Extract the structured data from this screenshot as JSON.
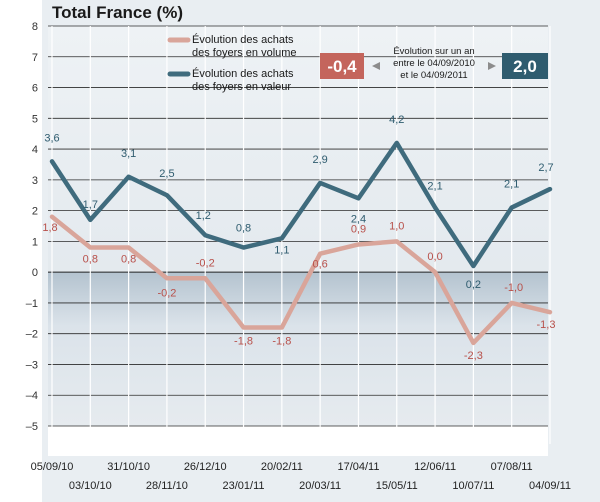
{
  "chart_data": {
    "type": "line",
    "title": "Total France (%)",
    "x": [
      "05/09/10",
      "03/10/10",
      "31/10/10",
      "28/11/10",
      "26/12/10",
      "23/01/11",
      "20/02/11",
      "20/03/11",
      "17/04/11",
      "15/05/11",
      "12/06/11",
      "10/07/11",
      "07/08/11",
      "04/09/11"
    ],
    "ylim": [
      -5,
      8
    ],
    "yticks": [
      -5,
      -4,
      -3,
      -2,
      -1,
      0,
      1,
      2,
      3,
      4,
      5,
      6,
      7,
      8
    ],
    "grid": true,
    "legend_position": "top-right",
    "series": [
      {
        "name": "Évolution des achats des foyers en volume",
        "name_lines": [
          "Évolution des achats",
          "des foyers en volume"
        ],
        "color": "#d9a59a",
        "values": [
          1.8,
          0.8,
          0.8,
          -0.2,
          -0.2,
          -1.8,
          -1.8,
          0.6,
          0.9,
          1.0,
          0.0,
          -2.3,
          -1.0,
          -1.3
        ],
        "labels": [
          "1,8",
          "0,8",
          "0,8",
          "-0,2",
          "-0,2",
          "-1,8",
          "-1,8",
          "0,6",
          "0,9",
          "1,0",
          "0,0",
          "-2,3",
          "-1,0",
          "-1,3"
        ]
      },
      {
        "name": "Évolution des achats des foyers en valeur",
        "name_lines": [
          "Évolution des achats",
          "des foyers en valeur"
        ],
        "color": "#3f6b7d",
        "values": [
          3.6,
          1.7,
          3.1,
          2.5,
          1.2,
          0.8,
          1.1,
          2.9,
          2.4,
          4.2,
          2.1,
          0.2,
          2.1,
          2.7
        ],
        "labels": [
          "3,6",
          "1,7",
          "3,1",
          "2,5",
          "1,2",
          "0,8",
          "1,1",
          "2,9",
          "2,4",
          "4,2",
          "2,1",
          "0,2",
          "2,1",
          "2,7"
        ]
      }
    ],
    "annotation": {
      "lines": [
        "Évolution sur un an",
        "entre le 04/09/2010",
        "et le 04/09/2011"
      ],
      "volume_value": "-0,4",
      "value_value": "2,0",
      "volume_color": "#c4655c",
      "value_color": "#2f5c6f"
    }
  }
}
